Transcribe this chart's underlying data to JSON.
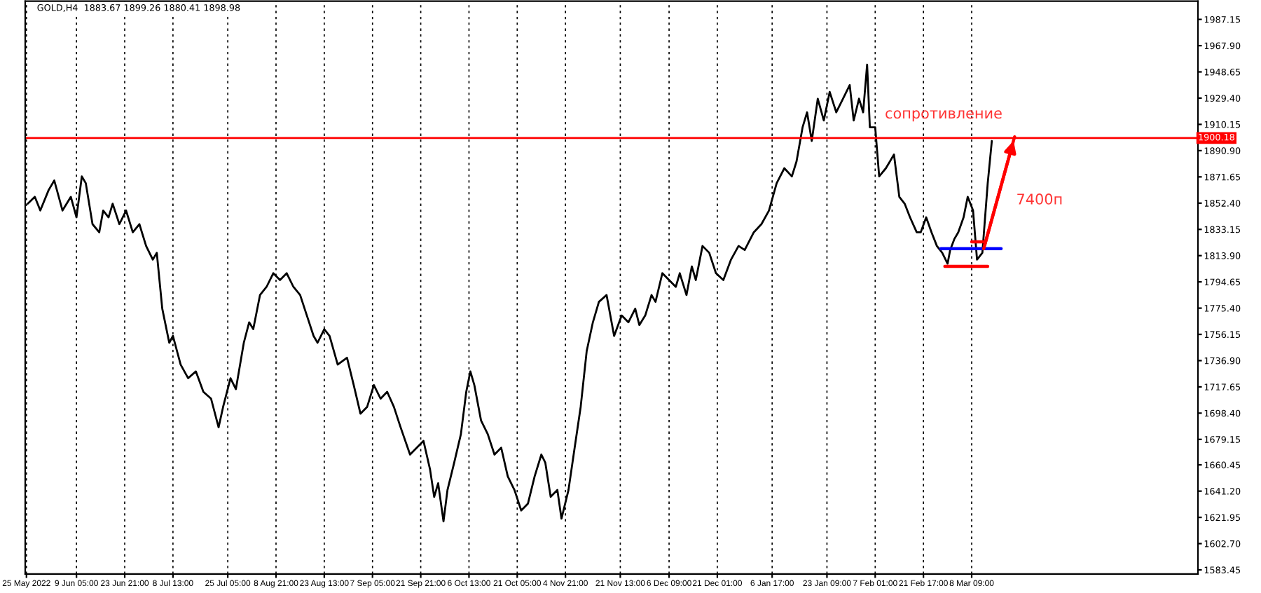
{
  "chart_data": {
    "type": "line",
    "title": "GOLD,H4  1883.67 1899.26 1880.41 1898.98",
    "series": [
      {
        "color": "#000000",
        "x": [
          "2022-05-25T10:00",
          "2022-05-27T13:00",
          "2022-05-29T05:00",
          "2022-05-31T18:00",
          "2022-06-02T11:00",
          "2022-06-04T23:00",
          "2022-06-07T12:00",
          "2022-06-09T05:00",
          "2022-06-10T20:00",
          "2022-06-12T01:00",
          "2022-06-14T02:00",
          "2022-06-16T03:00",
          "2022-06-17T08:00",
          "2022-06-18T23:00",
          "2022-06-20T05:00",
          "2022-06-22T06:00",
          "2022-06-24T07:00",
          "2022-06-26T08:00",
          "2022-06-28T08:00",
          "2022-06-30T09:00",
          "2022-07-02T10:00",
          "2022-07-03T15:00",
          "2022-07-05T07:00",
          "2022-07-07T10:00",
          "2022-07-08T13:00",
          "2022-07-10T21:00",
          "2022-07-13T04:00",
          "2022-07-15T12:00",
          "2022-07-17T19:00",
          "2022-07-20T03:00",
          "2022-07-22T10:00",
          "2022-07-23T19:00",
          "2022-07-26T01:00",
          "2022-07-27T16:00",
          "2022-07-30T02:00",
          "2022-07-31T17:00",
          "2022-08-01T23:00",
          "2022-08-04T00:00",
          "2022-08-06T00:00",
          "2022-08-08T01:00",
          "2022-08-10T02:00",
          "2022-08-12T03:00",
          "2022-08-14T04:00",
          "2022-08-16T05:00",
          "2022-08-18T06:00",
          "2022-08-20T07:00",
          "2022-08-21T12:00",
          "2022-08-23T13:00",
          "2022-08-25T04:00",
          "2022-08-27T15:00",
          "2022-08-30T11:00",
          "2022-09-01T12:00",
          "2022-09-03T13:00",
          "2022-09-05T14:00",
          "2022-09-07T15:00",
          "2022-09-09T16:00",
          "2022-09-11T16:00",
          "2022-09-13T17:00",
          "2022-09-15T18:00",
          "2022-09-18T15:00",
          "2022-09-20T16:00",
          "2022-09-22T17:00",
          "2022-09-24T17:00",
          "2022-09-25T23:00",
          "2022-09-27T04:00",
          "2022-09-28T19:00",
          "2022-09-30T00:00",
          "2022-10-02T01:00",
          "2022-10-04T02:00",
          "2022-10-05T17:00",
          "2022-10-06T23:00",
          "2022-10-08T04:00",
          "2022-10-10T05:00",
          "2022-10-12T06:00",
          "2022-10-14T07:00",
          "2022-10-16T08:00",
          "2022-10-18T08:00",
          "2022-10-20T09:00",
          "2022-10-22T10:00",
          "2022-10-24T11:00",
          "2022-10-26T12:00",
          "2022-10-28T13:00",
          "2022-10-29T18:00",
          "2022-10-31T09:00",
          "2022-11-02T10:00",
          "2022-11-03T16:00",
          "2022-11-05T19:00",
          "2022-11-07T16:00",
          "2022-11-09T12:00",
          "2022-11-11T08:00",
          "2022-11-13T05:00",
          "2022-11-15T01:00",
          "2022-11-17T09:00",
          "2022-11-19T16:00",
          "2022-11-21T23:00",
          "2022-11-24T00:00",
          "2022-11-26T02:00",
          "2022-11-27T08:00",
          "2022-11-29T03:00",
          "2022-12-01T01:00",
          "2022-12-02T06:00",
          "2022-12-04T08:00",
          "2022-12-06T09:00",
          "2022-12-08T10:00",
          "2022-12-09T15:00",
          "2022-12-11T16:00",
          "2022-12-13T07:00",
          "2022-12-14T12:00",
          "2022-12-16T13:00",
          "2022-12-18T14:00",
          "2022-12-20T15:00",
          "2022-12-22T21:00",
          "2022-12-25T05:00",
          "2022-12-27T12:00",
          "2022-12-29T09:00",
          "2023-01-01T03:00",
          "2023-01-03T11:00",
          "2023-01-05T18:00",
          "2023-01-08T02:00",
          "2023-01-10T10:00",
          "2023-01-12T17:00",
          "2023-01-14T03:00",
          "2023-01-15T23:00",
          "2023-01-17T08:00",
          "2023-01-18T18:00",
          "2023-01-20T14:00",
          "2023-01-22T10:00",
          "2023-01-24T05:00",
          "2023-01-26T05:00",
          "2023-01-28T06:00",
          "2023-01-30T07:00",
          "2023-01-31T12:00",
          "2023-02-02T03:00",
          "2023-02-03T09:00",
          "2023-02-04T14:00",
          "2023-02-05T10:00",
          "2023-02-07T01:00",
          "2023-02-08T06:00",
          "2023-02-10T07:00",
          "2023-02-12T18:00",
          "2023-02-14T09:00",
          "2023-02-16T00:00",
          "2023-02-17T15:00",
          "2023-02-19T16:00",
          "2023-02-20T21:00",
          "2023-02-22T13:00",
          "2023-02-24T04:00",
          "2023-02-25T19:00",
          "2023-02-27T10:00",
          "2023-03-01T01:00",
          "2023-03-01T20:00",
          "2023-03-03T02:00",
          "2023-03-04T07:00",
          "2023-03-05T22:00",
          "2023-03-07T04:00",
          "2023-03-08T19:00",
          "2023-03-10T00:00",
          "2023-03-11T15:00",
          "2023-03-13T06:00",
          "2023-03-14T12:00"
        ],
        "values": [
          1852,
          1857,
          1847,
          1862,
          1869,
          1847,
          1857,
          1842,
          1872,
          1867,
          1837,
          1831,
          1847,
          1842,
          1852,
          1837,
          1847,
          1831,
          1837,
          1821,
          1811,
          1816,
          1775,
          1750,
          1755,
          1734,
          1724,
          1729,
          1714,
          1709,
          1688,
          1703,
          1724,
          1716,
          1750,
          1765,
          1760,
          1785,
          1791,
          1801,
          1796,
          1801,
          1791,
          1785,
          1770,
          1755,
          1750,
          1760,
          1755,
          1734,
          1739,
          1719,
          1698,
          1703,
          1719,
          1709,
          1714,
          1703,
          1688,
          1668,
          1673,
          1678,
          1657,
          1637,
          1647,
          1619,
          1642,
          1662,
          1683,
          1714,
          1729,
          1719,
          1693,
          1683,
          1668,
          1673,
          1652,
          1642,
          1627,
          1632,
          1652,
          1668,
          1662,
          1637,
          1642,
          1621,
          1642,
          1673,
          1703,
          1744,
          1765,
          1780,
          1785,
          1755,
          1770,
          1765,
          1775,
          1763,
          1770,
          1785,
          1780,
          1801,
          1796,
          1791,
          1801,
          1785,
          1806,
          1796,
          1821,
          1816,
          1801,
          1796,
          1811,
          1821,
          1818,
          1831,
          1837,
          1847,
          1867,
          1878,
          1872,
          1883,
          1908,
          1919,
          1898,
          1929,
          1913,
          1934,
          1919,
          1929,
          1939,
          1913,
          1929,
          1919,
          1954,
          1908,
          1908,
          1872,
          1878,
          1888,
          1857,
          1852,
          1842,
          1831,
          1831,
          1842,
          1831,
          1821,
          1816,
          1808,
          1818,
          1826,
          1831,
          1842,
          1857,
          1847,
          1811,
          1816,
          1867,
          1898
        ]
      },
      {
        "color": "#0000ff",
        "x": [
          "2023-02-27T00:00",
          "2023-03-17T08:00"
        ],
        "values": [
          1819,
          1819
        ]
      },
      {
        "color": "#ff0000",
        "x": [
          "2023-02-28T05:00",
          "2023-03-13T06:00"
        ],
        "values": [
          1806,
          1806
        ]
      },
      {
        "color": "#ff0000",
        "x": [
          "2023-03-08T09:00",
          "2023-03-12T11:00"
        ],
        "values": [
          1824,
          1824
        ]
      },
      {
        "color": "#ff0000",
        "x": [
          "2023-03-12T01:00",
          "2023-03-21T10:00"
        ],
        "values": [
          1819,
          1901
        ]
      }
    ],
    "xlim": [
      "2022-05-24T15:00",
      "2023-05-16T04:00"
    ],
    "xticks": [
      {
        "value": "2022-05-25",
        "label": "25 May 2022"
      },
      {
        "value": "2022-06-09T05:00",
        "label": "9 Jun 05:00"
      },
      {
        "value": "2022-06-23T21:00",
        "label": "23 Jun 21:00"
      },
      {
        "value": "2022-07-08T13:00",
        "label": "8 Jul 13:00"
      },
      {
        "value": "2022-07-25T05:00",
        "label": "25 Jul 05:00"
      },
      {
        "value": "2022-08-08T21:00",
        "label": "8 Aug 21:00"
      },
      {
        "value": "2022-08-23T13:00",
        "label": "23 Aug 13:00"
      },
      {
        "value": "2022-09-07T05:00",
        "label": "7 Sep 05:00"
      },
      {
        "value": "2022-09-21T21:00",
        "label": "21 Sep 21:00"
      },
      {
        "value": "2022-10-06T13:00",
        "label": "6 Oct 13:00"
      },
      {
        "value": "2022-10-21T05:00",
        "label": "21 Oct 05:00"
      },
      {
        "value": "2022-11-04T21:00",
        "label": "4 Nov 21:00"
      },
      {
        "value": "2022-11-21T13:00",
        "label": "21 Nov 13:00"
      },
      {
        "value": "2022-12-06T09:00",
        "label": "6 Dec 09:00"
      },
      {
        "value": "2022-12-21T01:00",
        "label": "21 Dec 01:00"
      },
      {
        "value": "2023-01-06T17:00",
        "label": "6 Jan 17:00"
      },
      {
        "value": "2023-01-23T09:00",
        "label": "23 Jan 09:00"
      },
      {
        "value": "2023-02-07T01:00",
        "label": "7 Feb 01:00"
      },
      {
        "value": "2023-02-21T17:00",
        "label": "21 Feb 17:00"
      },
      {
        "value": "2023-03-08T09:00",
        "label": "8 Mar 09:00"
      }
    ],
    "ylim": [
      1580.4,
      2000.5
    ],
    "yticks": [
      {
        "value": 1583.45,
        "label": "1583.45"
      },
      {
        "value": 1602.7,
        "label": "1602.70"
      },
      {
        "value": 1621.95,
        "label": "1621.95"
      },
      {
        "value": 1641.2,
        "label": "1641.20"
      },
      {
        "value": 1660.45,
        "label": "1660.45"
      },
      {
        "value": 1679.15,
        "label": "1679.15"
      },
      {
        "value": 1698.4,
        "label": "1698.40"
      },
      {
        "value": 1717.65,
        "label": "1717.65"
      },
      {
        "value": 1736.9,
        "label": "1736.90"
      },
      {
        "value": 1756.15,
        "label": "1756.15"
      },
      {
        "value": 1775.4,
        "label": "1775.40"
      },
      {
        "value": 1794.65,
        "label": "1794.65"
      },
      {
        "value": 1813.9,
        "label": "1813.90"
      },
      {
        "value": 1833.15,
        "label": "1833.15"
      },
      {
        "value": 1852.4,
        "label": "1852.40"
      },
      {
        "value": 1871.65,
        "label": "1871.65"
      },
      {
        "value": 1890.9,
        "label": "1890.90"
      },
      {
        "value": 1910.15,
        "label": "1910.15"
      },
      {
        "value": 1929.4,
        "label": "1929.40"
      },
      {
        "value": 1948.65,
        "label": "1948.65"
      },
      {
        "value": 1967.9,
        "label": "1967.90"
      },
      {
        "value": 1987.15,
        "label": "1987.15"
      }
    ],
    "grid": "x",
    "ref_lines": [
      {
        "axis": "y",
        "value": 1900.18,
        "label": "1900.18",
        "color": "#ff0000"
      }
    ],
    "annotations": [
      "сопротивление",
      "7400п"
    ]
  }
}
